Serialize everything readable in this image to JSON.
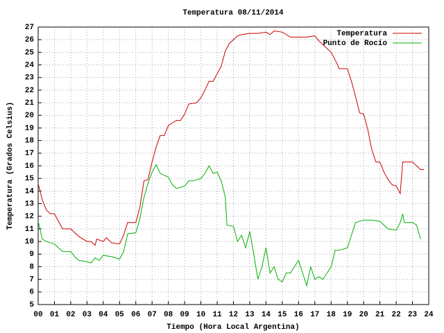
{
  "chart_data": {
    "type": "line",
    "title": "Temperatura 08/11/2014",
    "x_label": "Tiempo (Hora Local Argentina)",
    "y_label": "Temperatura (Grados Celsius)",
    "xlim": [
      0,
      24
    ],
    "ylim": [
      5,
      27
    ],
    "xticks": [
      {
        "value": 0,
        "label": "00"
      },
      {
        "value": 1,
        "label": "01"
      },
      {
        "value": 2,
        "label": "02"
      },
      {
        "value": 3,
        "label": "03"
      },
      {
        "value": 4,
        "label": "04"
      },
      {
        "value": 5,
        "label": "05"
      },
      {
        "value": 6,
        "label": "06"
      },
      {
        "value": 7,
        "label": "07"
      },
      {
        "value": 8,
        "label": "08"
      },
      {
        "value": 9,
        "label": "09"
      },
      10,
      11,
      12,
      13,
      14,
      15,
      16,
      17,
      18,
      19,
      20,
      21,
      22,
      23,
      24
    ],
    "yticks": [
      5,
      6,
      7,
      8,
      9,
      10,
      11,
      12,
      13,
      14,
      15,
      16,
      17,
      18,
      19,
      20,
      21,
      22,
      23,
      24,
      25,
      26,
      27
    ],
    "grid": true,
    "legend": "upper right",
    "series": [
      {
        "name": "Temperatura",
        "color": "#cc0000",
        "x": [
          0,
          0.25,
          0.5,
          0.75,
          1,
          1.25,
          1.5,
          2,
          2.5,
          3,
          3.25,
          3.5,
          3.6,
          4,
          4.2,
          4.5,
          5,
          5.25,
          5.5,
          6,
          6.25,
          6.5,
          6.75,
          7,
          7.25,
          7.5,
          7.75,
          8,
          8.5,
          8.75,
          9,
          9.25,
          9.75,
          10,
          10.25,
          10.5,
          10.75,
          11,
          11.25,
          11.5,
          11.75,
          12,
          12.25,
          12.5,
          13,
          13.5,
          14,
          14.25,
          14.5,
          15,
          15.5,
          16,
          16.5,
          17,
          17.25,
          17.5,
          18,
          18.25,
          18.5,
          19,
          19.25,
          19.5,
          19.75,
          20,
          20.25,
          20.5,
          20.75,
          21,
          21.25,
          21.5,
          21.75,
          22,
          22.25,
          22.4,
          22.75,
          23,
          23.25,
          23.5,
          23.7
        ],
        "values": [
          14.6,
          13.3,
          12.5,
          12.2,
          12.2,
          11.6,
          11.0,
          11.0,
          10.4,
          10.0,
          10.0,
          9.7,
          10.2,
          10.0,
          10.3,
          9.9,
          9.8,
          10.5,
          11.5,
          11.5,
          12.7,
          14.8,
          14.9,
          16.3,
          17.5,
          18.4,
          18.4,
          19.2,
          19.6,
          19.6,
          20.1,
          20.9,
          21.0,
          21.4,
          22.0,
          22.7,
          22.7,
          23.3,
          23.9,
          25.1,
          25.7,
          26.0,
          26.3,
          26.4,
          26.5,
          26.5,
          26.6,
          26.4,
          26.7,
          26.6,
          26.2,
          26.2,
          26.2,
          26.3,
          25.9,
          25.6,
          25.0,
          24.4,
          23.7,
          23.7,
          22.7,
          21.5,
          20.2,
          20.1,
          18.9,
          17.3,
          16.3,
          16.3,
          15.5,
          14.9,
          14.5,
          14.4,
          13.8,
          16.3,
          16.3,
          16.3,
          16.0,
          15.7,
          15.7
        ]
      },
      {
        "name": "Punto de Rocío",
        "color": "#00b000",
        "x": [
          0,
          0.25,
          0.5,
          1,
          1.25,
          1.5,
          2,
          2.25,
          2.5,
          3,
          3.25,
          3.5,
          3.75,
          4,
          4.5,
          5,
          5.25,
          5.5,
          6,
          6.25,
          6.5,
          6.75,
          7,
          7.25,
          7.5,
          8,
          8.25,
          8.5,
          9,
          9.25,
          9.5,
          10,
          10.25,
          10.5,
          10.75,
          11,
          11.25,
          11.5,
          11.6,
          12,
          12.25,
          12.5,
          12.75,
          13,
          13.25,
          13.5,
          13.75,
          14,
          14.25,
          14.5,
          14.75,
          15,
          15.25,
          15.5,
          16,
          16.25,
          16.5,
          16.75,
          17,
          17.25,
          17.5,
          18,
          18.25,
          18.5,
          19,
          19.25,
          19.5,
          20,
          20.5,
          21,
          21.25,
          21.5,
          22,
          22.25,
          22.4,
          22.5,
          23,
          23.25,
          23.5
        ],
        "values": [
          11.6,
          10.2,
          10.0,
          9.8,
          9.5,
          9.2,
          9.2,
          8.8,
          8.5,
          8.4,
          8.3,
          8.7,
          8.5,
          8.9,
          8.8,
          8.6,
          9.2,
          10.6,
          10.7,
          11.8,
          13.5,
          14.6,
          15.5,
          16.1,
          15.4,
          15.1,
          14.5,
          14.2,
          14.4,
          14.8,
          14.8,
          15.0,
          15.4,
          16.0,
          15.4,
          15.5,
          14.8,
          13.5,
          11.3,
          11.2,
          10.0,
          10.5,
          9.5,
          10.8,
          9.0,
          7.0,
          8.0,
          9.5,
          7.5,
          8.0,
          7.0,
          6.8,
          7.5,
          7.5,
          8.5,
          7.5,
          6.5,
          8.0,
          7.0,
          7.2,
          7.0,
          8.0,
          9.3,
          9.3,
          9.5,
          10.5,
          11.5,
          11.7,
          11.7,
          11.6,
          11.3,
          11.0,
          10.9,
          11.5,
          12.2,
          11.5,
          11.5,
          11.3,
          10.2
        ]
      }
    ]
  }
}
